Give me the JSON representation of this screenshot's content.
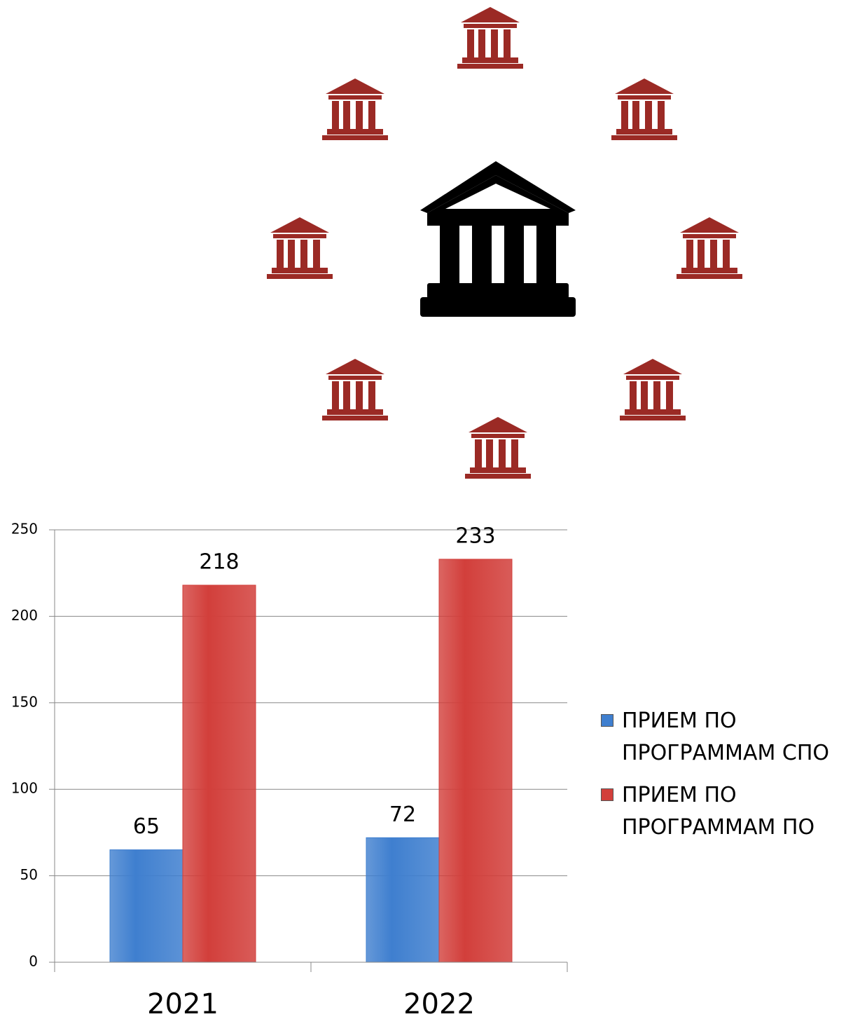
{
  "chart_data": {
    "type": "bar",
    "categories": [
      "2021",
      "2022"
    ],
    "series": [
      {
        "name": "ПРИЕМ ПО ПРОГРАММАМ СПО",
        "color": "#3f7fcf",
        "values": [
          65,
          72
        ]
      },
      {
        "name": "ПРИЕМ ПО ПРОГРАММАМ ПО",
        "color": "#d23f3b",
        "values": [
          218,
          233
        ]
      }
    ],
    "ylim": [
      0,
      250
    ],
    "yticks": [
      0,
      50,
      100,
      150,
      200,
      250
    ],
    "grid": true,
    "legend": "right"
  }
}
